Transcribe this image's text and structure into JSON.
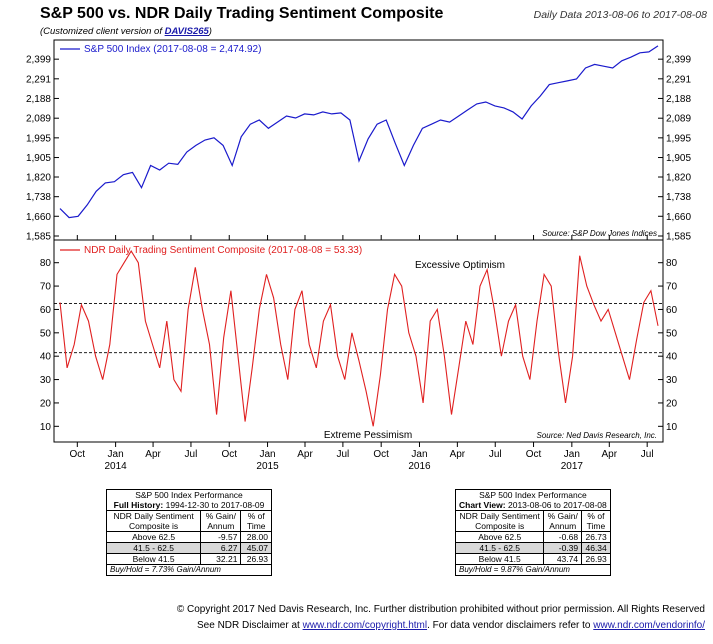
{
  "header": {
    "title": "S&P 500 vs. NDR Daily Trading Sentiment Composite",
    "subtitle_prefix": "(Customized client version of ",
    "subtitle_code": "DAVIS265",
    "subtitle_suffix": ")",
    "date_range": "Daily Data 2013-08-06 to 2017-08-08"
  },
  "chart_data": [
    {
      "type": "line",
      "series": [
        {
          "name": "S&P 500 Index (2017-08-08 = 2,474.92)",
          "color": "#1a1acc",
          "values": [
            1690,
            1655,
            1660,
            1705,
            1760,
            1795,
            1800,
            1830,
            1840,
            1775,
            1870,
            1850,
            1880,
            1875,
            1930,
            1960,
            1985,
            1995,
            1960,
            1870,
            2000,
            2060,
            2080,
            2040,
            2070,
            2100,
            2090,
            2110,
            2105,
            2120,
            2110,
            2115,
            2080,
            1890,
            1990,
            2060,
            2080,
            1970,
            1870,
            1960,
            2040,
            2060,
            2080,
            2070,
            2100,
            2130,
            2160,
            2170,
            2150,
            2140,
            2120,
            2085,
            2150,
            2200,
            2260,
            2270,
            2280,
            2290,
            2350,
            2370,
            2360,
            2350,
            2390,
            2410,
            2435,
            2440,
            2475
          ]
        }
      ],
      "x_start": "2013-08-06",
      "x_end": "2017-08-08",
      "y_scale": "log",
      "ylim": [
        1585,
        2480
      ],
      "y_ticks": [
        1585,
        1660,
        1738,
        1820,
        1905,
        1995,
        2089,
        2188,
        2291,
        2399
      ],
      "y_tick_labels": [
        "1,585",
        "1,660",
        "1,738",
        "1,820",
        "1,905",
        "1,995",
        "2,089",
        "2,188",
        "2,291",
        "2,399"
      ],
      "legend": "top-left",
      "source": "Source:  S&P Dow Jones Indices"
    },
    {
      "type": "line",
      "series": [
        {
          "name": "NDR Daily Trading Sentiment Composite (2017-08-08 = 53.33)",
          "color": "#e02020",
          "values": [
            63,
            35,
            45,
            62,
            55,
            40,
            30,
            45,
            75,
            80,
            85,
            80,
            55,
            45,
            35,
            55,
            30,
            25,
            60,
            78,
            60,
            45,
            15,
            48,
            68,
            40,
            12,
            35,
            60,
            75,
            65,
            45,
            30,
            60,
            68,
            45,
            35,
            55,
            62,
            40,
            30,
            50,
            38,
            25,
            10,
            32,
            60,
            75,
            70,
            50,
            40,
            20,
            55,
            60,
            40,
            15,
            35,
            55,
            45,
            70,
            77,
            60,
            40,
            55,
            62,
            40,
            30,
            55,
            75,
            70,
            42,
            20,
            40,
            83,
            70,
            62,
            55,
            60,
            50,
            40,
            30,
            47,
            63,
            68,
            53
          ]
        }
      ],
      "x_start": "2013-08-06",
      "x_end": "2017-08-08",
      "ylim": [
        5,
        88
      ],
      "y_ticks": [
        10,
        20,
        30,
        40,
        50,
        60,
        70,
        80
      ],
      "y_tick_labels": [
        "10",
        "20",
        "30",
        "40",
        "50",
        "60",
        "70",
        "80"
      ],
      "reference_lines": [
        62.5,
        41.5
      ],
      "annotations": [
        "Excessive Optimism",
        "Extreme Pessimism"
      ],
      "legend": "top-left",
      "source": "Source:  Ned Davis Research, Inc.",
      "x_ticks": [
        {
          "date": "2013-10-01",
          "label": "Oct"
        },
        {
          "date": "2014-01-01",
          "label": "Jan"
        },
        {
          "date": "2014-04-01",
          "label": "Apr"
        },
        {
          "date": "2014-07-01",
          "label": "Jul"
        },
        {
          "date": "2014-10-01",
          "label": "Oct"
        },
        {
          "date": "2015-01-01",
          "label": "Jan"
        },
        {
          "date": "2015-04-01",
          "label": "Apr"
        },
        {
          "date": "2015-07-01",
          "label": "Jul"
        },
        {
          "date": "2015-10-01",
          "label": "Oct"
        },
        {
          "date": "2016-01-01",
          "label": "Jan"
        },
        {
          "date": "2016-04-01",
          "label": "Apr"
        },
        {
          "date": "2016-07-01",
          "label": "Jul"
        },
        {
          "date": "2016-10-01",
          "label": "Oct"
        },
        {
          "date": "2017-01-01",
          "label": "Jan"
        },
        {
          "date": "2017-04-01",
          "label": "Apr"
        },
        {
          "date": "2017-07-01",
          "label": "Jul"
        }
      ],
      "year_labels": [
        {
          "date": "2014-01-01",
          "label": "2014"
        },
        {
          "date": "2015-01-01",
          "label": "2015"
        },
        {
          "date": "2016-01-01",
          "label": "2016"
        },
        {
          "date": "2017-01-01",
          "label": "2017"
        }
      ]
    },
    {
      "type": "table",
      "title": "S&P 500 Index Performance",
      "period_label": "Full History:",
      "period": "1994-12-30 to 2017-08-09",
      "columns": [
        "NDR Daily Sentiment Composite is",
        "% Gain/ Annum",
        "% of Time"
      ],
      "col_head_1a": "NDR Daily Sentiment",
      "col_head_1b": "Composite is",
      "col_head_2a": "% Gain/",
      "col_head_2b": "Annum",
      "col_head_3a": "% of",
      "col_head_3b": "Time",
      "rows": [
        {
          "zone": "Above 62.5",
          "gain": "-9.57",
          "time": "28.00"
        },
        {
          "zone": "41.5 - 62.5",
          "gain": "6.27",
          "time": "45.07"
        },
        {
          "zone": "Below 41.5",
          "gain": "32.21",
          "time": "26.93"
        }
      ],
      "footer": "Buy/Hold = 7.73% Gain/Annum"
    },
    {
      "type": "table",
      "title": "S&P 500 Index Performance",
      "period_label": "Chart View:",
      "period": "2013-08-06 to 2017-08-08",
      "columns": [
        "NDR Daily Sentiment Composite is",
        "% Gain/ Annum",
        "% of Time"
      ],
      "col_head_1a": "NDR Daily Sentiment",
      "col_head_1b": "Composite is",
      "col_head_2a": "% Gain/",
      "col_head_2b": "Annum",
      "col_head_3a": "% of",
      "col_head_3b": "Time",
      "rows": [
        {
          "zone": "Above 62.5",
          "gain": "-0.68",
          "time": "26.73"
        },
        {
          "zone": "41.5 - 62.5",
          "gain": "-0.39",
          "time": "46.34"
        },
        {
          "zone": "Below 41.5",
          "gain": "43.74",
          "time": "26.93"
        }
      ],
      "footer": "Buy/Hold = 9.87% Gain/Annum"
    }
  ],
  "footer": {
    "copyright": "© Copyright 2017 Ned Davis Research, Inc. Further distribution prohibited without prior permission. All Rights Reserved",
    "disclaimer_1": "See NDR Disclaimer at ",
    "disclaimer_link_1": "www.ndr.com/copyright.html",
    "disclaimer_2": ". For data vendor disclaimers refer to ",
    "disclaimer_link_2": "www.ndr.com/vendorinfo/"
  }
}
